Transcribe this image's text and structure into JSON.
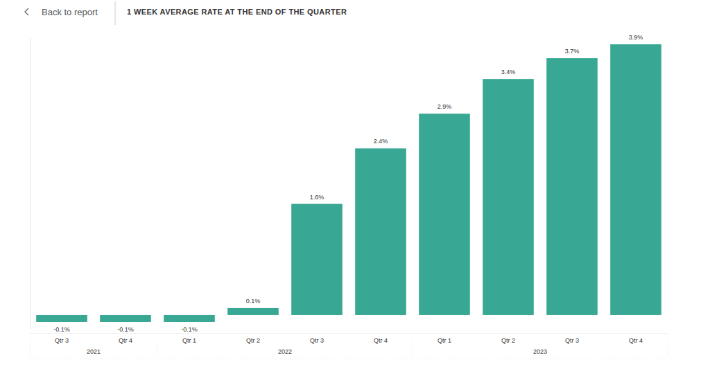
{
  "page": {
    "back_link": "Back to report"
  },
  "chart_data": {
    "type": "bar",
    "title": "1 WEEK AVERAGE RATE AT THE END OF THE QUARTER",
    "categories": [
      [
        "2021",
        "Qtr 3"
      ],
      [
        "2021",
        "Qtr 4"
      ],
      [
        "2022",
        "Qtr 1"
      ],
      [
        "2022",
        "Qtr 2"
      ],
      [
        "2022",
        "Qtr 3"
      ],
      [
        "2022",
        "Qtr 4"
      ],
      [
        "2023",
        "Qtr 1"
      ],
      [
        "2023",
        "Qtr 2"
      ],
      [
        "2023",
        "Qtr 3"
      ],
      [
        "2023",
        "Qtr 4"
      ]
    ],
    "values": [
      -0.1,
      -0.1,
      -0.1,
      0.1,
      1.6,
      2.4,
      2.9,
      3.4,
      3.7,
      3.9
    ],
    "value_labels": [
      "-0.1%",
      "-0.1%",
      "-0.1%",
      "0.1%",
      "1.6%",
      "2.4%",
      "2.9%",
      "3.4%",
      "3.7%",
      "3.9%"
    ],
    "color": "#38a894",
    "ylim": [
      -0.2,
      4
    ],
    "data_labels": true,
    "tick_labels": "x"
  }
}
